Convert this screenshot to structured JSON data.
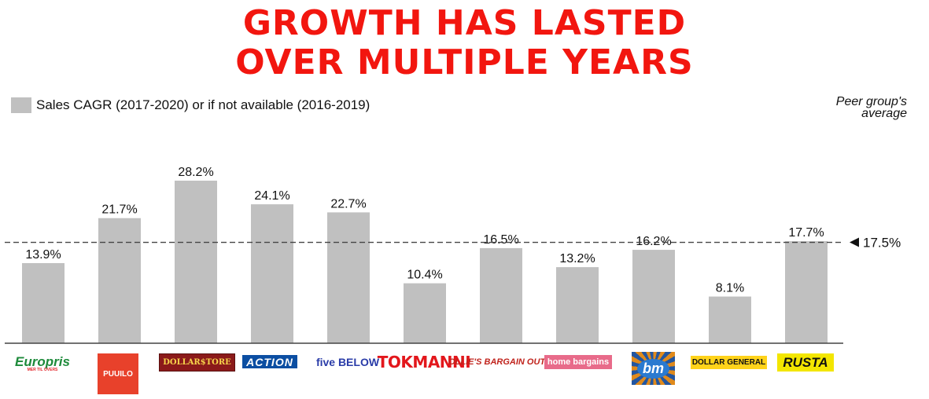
{
  "title": {
    "line1": "GROWTH HAS LASTED",
    "line2": "OVER MULTIPLE YEARS"
  },
  "legend": {
    "label": "Sales CAGR (2017-2020) or if not available (2016-2019)"
  },
  "peer": {
    "line1": "Peer group's",
    "line2": "average"
  },
  "colors": {
    "title": "#f2160f",
    "bar": "#c0c0c0"
  },
  "logos": {
    "europris": {
      "name": "Europris",
      "tagline": "MER TIL OVERS"
    },
    "puuilo": "PUUILO",
    "dollarstore": "DOLLAR$TORE",
    "action": "ACTION",
    "fivebelow": "five BELΟW",
    "tokmanni": "TOKMANNI",
    "ollies": "OLLIE'S BARGAIN OUTLET",
    "homebargains": "home bargains",
    "bm": "bm",
    "dollargeneral": "DOLLAR GENERAL",
    "rusta": "RUSTA"
  },
  "chart_data": {
    "type": "bar",
    "categories": [
      "Europris",
      "Puuilo",
      "Dollar Store",
      "Action",
      "Five Below",
      "Tokmanni",
      "Ollie's Bargain Outlet",
      "Home Bargains",
      "B&M",
      "Dollar General",
      "Rusta"
    ],
    "values": [
      13.9,
      21.7,
      28.2,
      24.1,
      22.7,
      10.4,
      16.5,
      13.2,
      16.2,
      8.1,
      17.7
    ],
    "labels": [
      "13.9%",
      "21.7%",
      "28.2%",
      "24.1%",
      "22.7%",
      "10.4%",
      "16.5%",
      "13.2%",
      "16.2%",
      "8.1%",
      "17.7%"
    ],
    "series": [
      {
        "name": "Sales CAGR (2017-2020) or if not available (2016-2019)",
        "values": [
          13.9,
          21.7,
          28.2,
          24.1,
          22.7,
          10.4,
          16.5,
          13.2,
          16.2,
          8.1,
          17.7
        ]
      }
    ],
    "reference_line": {
      "value": 17.5,
      "label": "17.5%",
      "style": "dashed"
    },
    "ylim": [
      0,
      28.2
    ],
    "grid": false,
    "legend_position": "top-left"
  }
}
